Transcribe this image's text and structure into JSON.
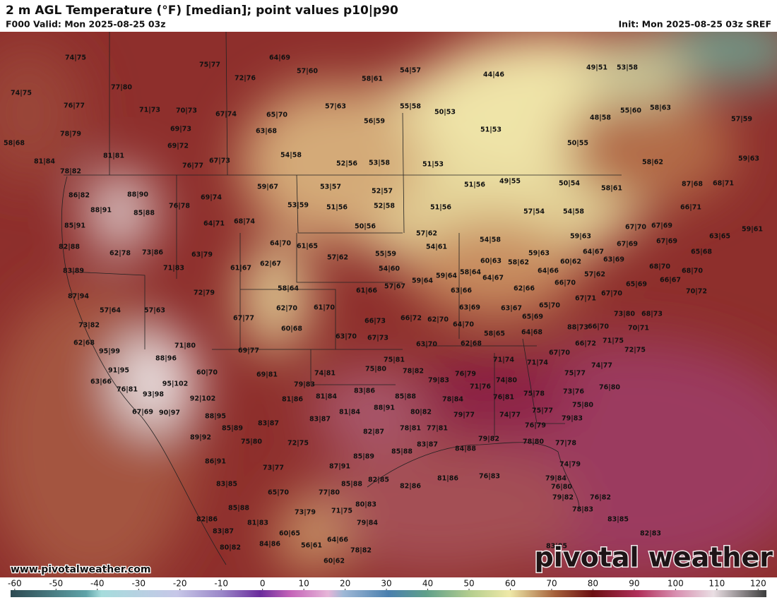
{
  "header": {
    "title": "2 m AGL Temperature (°F) [median]; point values p10|p90",
    "valid": "F000 Valid: Mon 2025-08-25 03z",
    "init": "Init: Mon 2025-08-25 03z SREF"
  },
  "points": [
    "74|75",
    "74|75",
    "76|77",
    "77|80",
    "75|77",
    "72|76",
    "64|69",
    "57|60",
    "58|61",
    "54|57",
    "44|46",
    "49|51",
    "53|58",
    "78|79",
    "58|68",
    "71|73",
    "70|73",
    "67|74",
    "65|70",
    "57|63",
    "56|59",
    "55|58",
    "50|53",
    "48|58",
    "55|60",
    "58|63",
    "57|59",
    "69|73",
    "63|68",
    "51|53",
    "81|81",
    "81|84",
    "69|72",
    "54|58",
    "50|55",
    "76|77",
    "67|73",
    "52|56",
    "53|58",
    "51|53",
    "58|62",
    "59|63",
    "78|82",
    "51|56",
    "49|55",
    "50|54",
    "58|61",
    "87|68",
    "68|71",
    "86|82",
    "88|90",
    "69|74",
    "59|67",
    "53|57",
    "52|57",
    "76|78",
    "53|59",
    "51|56",
    "52|58",
    "51|56",
    "57|54",
    "54|58",
    "66|71",
    "88|91",
    "85|88",
    "64|71",
    "68|74",
    "67|70",
    "67|69",
    "63|65",
    "59|61",
    "85|91",
    "50|56",
    "57|62",
    "54|58",
    "59|63",
    "82|88",
    "64|70",
    "61|65",
    "54|61",
    "64|67",
    "67|69",
    "67|69",
    "65|68",
    "62|78",
    "73|86",
    "63|79",
    "57|62",
    "55|59",
    "59|63",
    "60|63",
    "58|62",
    "63|69",
    "62|67",
    "61|67",
    "71|83",
    "54|60",
    "60|62",
    "64|66",
    "57|62",
    "68|70",
    "68|70",
    "83|89",
    "59|64",
    "58|64",
    "64|67",
    "59|64",
    "66|70",
    "65|69",
    "66|67",
    "70|72",
    "58|64",
    "57|67",
    "61|66",
    "63|66",
    "62|66",
    "67|70",
    "72|79",
    "87|94",
    "67|71",
    "57|64",
    "57|63",
    "62|70",
    "61|70",
    "63|69",
    "63|67",
    "65|70",
    "73|80",
    "68|73",
    "67|77",
    "66|73",
    "66|72",
    "62|70",
    "65|69",
    "64|70",
    "73|82",
    "60|68",
    "88|73",
    "66|70",
    "70|71",
    "64|68",
    "58|65",
    "63|70",
    "67|73",
    "62|68",
    "71|80",
    "63|70",
    "62|68",
    "66|72",
    "71|75",
    "72|75",
    "69|77",
    "95|99",
    "67|70",
    "75|81",
    "88|96",
    "71|74",
    "71|74",
    "74|77",
    "91|95",
    "60|70",
    "74|81",
    "75|80",
    "78|82",
    "76|79",
    "75|77",
    "69|81",
    "63|66",
    "95|102",
    "79|83",
    "79|83",
    "74|80",
    "76|80",
    "76|81",
    "83|86",
    "71|76",
    "75|78",
    "73|76",
    "93|98",
    "92|102",
    "81|86",
    "81|84",
    "85|88",
    "78|84",
    "76|81",
    "75|80",
    "67|69",
    "90|97",
    "88|91",
    "75|77",
    "88|95",
    "81|84",
    "80|82",
    "79|77",
    "74|77",
    "79|83",
    "83|87",
    "83|87",
    "85|89",
    "76|79",
    "78|81",
    "77|81",
    "82|87",
    "89|92",
    "72|75",
    "75|80",
    "83|87",
    "84|88",
    "79|82",
    "78|80",
    "77|78",
    "85|89",
    "85|88",
    "86|91",
    "87|91",
    "74|79",
    "73|77",
    "76|83",
    "81|86",
    "82|85",
    "83|85",
    "85|88",
    "82|86",
    "79|84",
    "76|80",
    "65|70",
    "77|80",
    "79|82",
    "76|82",
    "85|88",
    "71|75",
    "80|83",
    "73|79",
    "78|83",
    "82|86",
    "81|83",
    "79|84",
    "83|85",
    "83|87",
    "60|65",
    "82|83",
    "64|66",
    "84|86",
    "56|61",
    "80|82",
    "78|82",
    "83|85",
    "60|62"
  ],
  "colorbar": {
    "lim": [
      -61,
      122
    ],
    "ticks": [
      -60,
      -50,
      -40,
      -30,
      -20,
      -10,
      0,
      10,
      20,
      30,
      40,
      50,
      60,
      70,
      80,
      90,
      100,
      110,
      120
    ]
  },
  "footer": {
    "url": "www.pivotalweather.com",
    "logo": "pivotal weather"
  }
}
